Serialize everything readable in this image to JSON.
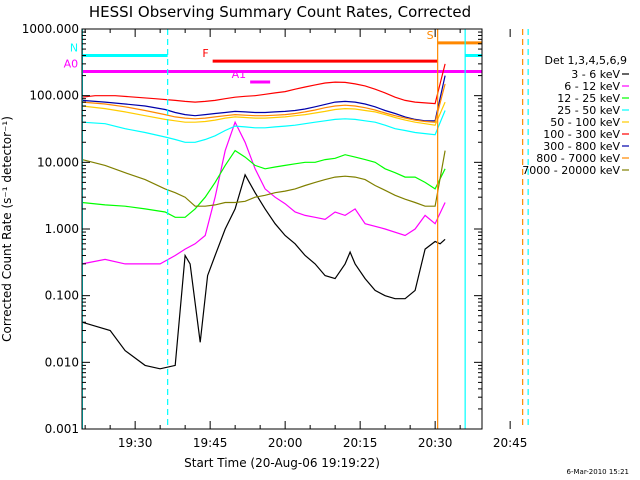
{
  "chart_data": {
    "type": "line",
    "title": "HESSI Observing Summary Count Rates, Corrected",
    "xlabel": "Start Time (20-Aug-06 19:19:22)",
    "ylabel": "Corrected Count Rate (s⁻¹ detector⁻¹)",
    "yscale": "log",
    "ylim": [
      0.001,
      1000
    ],
    "xlim_minutes": [
      19.37,
      99.37
    ],
    "y_tick_labels": [
      "0.001",
      "0.010",
      "0.100",
      "1.000",
      "10.000",
      "100.000",
      "1000.000"
    ],
    "y_tick_values": [
      0.001,
      0.01,
      0.1,
      1,
      10,
      100,
      1000
    ],
    "x_tick_labels": [
      "19:30",
      "19:45",
      "20:00",
      "20:15",
      "20:30",
      "20:45"
    ],
    "x_tick_minutes": [
      30,
      45,
      60,
      75,
      90,
      105
    ],
    "legend_title": "Det 1,3,4,5,6,9",
    "legend_position": "right",
    "series": [
      {
        "name": "3 - 6 keV",
        "color": "#000000",
        "x": [
          19.4,
          22,
          25,
          28,
          32,
          35,
          38,
          40,
          41,
          43,
          44.5,
          46,
          48,
          50,
          52,
          54,
          56,
          58,
          60,
          62,
          64,
          66,
          68,
          70,
          72,
          73,
          74,
          76,
          78,
          80,
          82,
          84,
          86,
          88,
          90,
          91,
          92
        ],
        "y": [
          0.04,
          0.035,
          0.03,
          0.015,
          0.009,
          0.008,
          0.009,
          0.4,
          0.3,
          0.02,
          0.2,
          0.4,
          1.0,
          2.0,
          6.5,
          3.5,
          2.0,
          1.2,
          0.8,
          0.6,
          0.4,
          0.3,
          0.2,
          0.18,
          0.3,
          0.45,
          0.3,
          0.18,
          0.12,
          0.1,
          0.09,
          0.09,
          0.12,
          0.5,
          0.65,
          0.6,
          0.7
        ]
      },
      {
        "name": "6 - 12 keV",
        "color": "#ff00ff",
        "x": [
          19.4,
          24,
          28,
          32,
          35,
          38,
          40,
          42,
          44,
          46,
          48,
          50,
          52,
          54,
          56,
          58,
          60,
          62,
          64,
          66,
          68,
          70,
          72,
          74,
          76,
          80,
          84,
          86,
          88,
          90,
          92
        ],
        "y": [
          0.3,
          0.35,
          0.3,
          0.3,
          0.3,
          0.4,
          0.5,
          0.6,
          0.8,
          3,
          15,
          40,
          20,
          8,
          4,
          3,
          2.4,
          1.8,
          1.6,
          1.5,
          1.4,
          1.8,
          1.6,
          2,
          1.2,
          1,
          0.8,
          1,
          1.6,
          1.2,
          2.5
        ]
      },
      {
        "name": "12 - 25 keV",
        "color": "#00ff00",
        "x": [
          19.4,
          24,
          28,
          32,
          36,
          38,
          40,
          42,
          44,
          46,
          48,
          50,
          52,
          54,
          56,
          58,
          60,
          62,
          64,
          66,
          68,
          70,
          72,
          74,
          76,
          78,
          80,
          82,
          84,
          86,
          88,
          90,
          92
        ],
        "y": [
          2.5,
          2.3,
          2.2,
          2.0,
          1.8,
          1.5,
          1.5,
          2.0,
          3.0,
          5,
          9,
          15,
          12,
          9,
          8,
          8.5,
          9,
          9.5,
          10,
          10,
          11,
          11.5,
          13,
          12,
          11,
          10,
          8,
          7,
          6,
          6,
          5,
          4,
          8
        ]
      },
      {
        "name": "25 - 50 keV",
        "color": "#00ffff",
        "x": [
          19.4,
          24,
          28,
          32,
          36,
          38,
          40,
          42,
          44,
          46,
          48,
          50,
          52,
          54,
          56,
          58,
          60,
          62,
          64,
          66,
          68,
          70,
          72,
          74,
          76,
          78,
          80,
          82,
          84,
          86,
          88,
          90,
          92
        ],
        "y": [
          40,
          38,
          32,
          28,
          24,
          22,
          20,
          20,
          22,
          25,
          30,
          35,
          34,
          33,
          33,
          34,
          35,
          36,
          38,
          40,
          42,
          44,
          45,
          44,
          42,
          40,
          36,
          32,
          30,
          28,
          27,
          26,
          60
        ]
      },
      {
        "name": "50 - 100 keV",
        "color": "#ffcc00",
        "x": [
          19.4,
          24,
          28,
          32,
          36,
          38,
          40,
          42,
          44,
          46,
          48,
          50,
          52,
          54,
          56,
          58,
          60,
          62,
          64,
          66,
          68,
          70,
          72,
          74,
          76,
          78,
          80,
          82,
          84,
          86,
          88,
          90,
          92
        ],
        "y": [
          70,
          64,
          57,
          50,
          44,
          42,
          40,
          40,
          41,
          43,
          46,
          48,
          47,
          46,
          46,
          47,
          48,
          50,
          52,
          55,
          58,
          62,
          64,
          63,
          60,
          57,
          52,
          47,
          43,
          40,
          38,
          36,
          80
        ]
      },
      {
        "name": "100 - 300 keV",
        "color": "#ff0000",
        "x": [
          19.4,
          22,
          26,
          30,
          34,
          38,
          40,
          42,
          44,
          46,
          48,
          50,
          52,
          54,
          56,
          58,
          60,
          62,
          64,
          66,
          68,
          70,
          72,
          74,
          76,
          78,
          80,
          82,
          84,
          86,
          88,
          90,
          92
        ],
        "y": [
          95,
          100,
          100,
          95,
          90,
          85,
          82,
          80,
          82,
          85,
          90,
          95,
          98,
          100,
          105,
          110,
          115,
          125,
          135,
          145,
          155,
          160,
          158,
          150,
          140,
          125,
          110,
          95,
          85,
          80,
          78,
          76,
          300
        ]
      },
      {
        "name": "300 - 800 keV",
        "color": "#0000aa",
        "x": [
          19.4,
          24,
          28,
          32,
          36,
          38,
          40,
          42,
          44,
          46,
          48,
          50,
          52,
          54,
          56,
          58,
          60,
          62,
          64,
          66,
          68,
          70,
          72,
          74,
          76,
          78,
          80,
          82,
          84,
          86,
          88,
          90,
          92
        ],
        "y": [
          85,
          80,
          75,
          70,
          62,
          56,
          52,
          50,
          52,
          54,
          56,
          58,
          57,
          56,
          56,
          57,
          58,
          60,
          63,
          68,
          74,
          80,
          82,
          80,
          75,
          68,
          60,
          54,
          48,
          44,
          42,
          42,
          200
        ]
      },
      {
        "name": "800 - 7000 keV",
        "color": "#ff8800",
        "x": [
          19.4,
          24,
          28,
          32,
          36,
          38,
          40,
          42,
          44,
          46,
          48,
          50,
          52,
          54,
          56,
          58,
          60,
          62,
          64,
          66,
          68,
          70,
          72,
          74,
          76,
          78,
          80,
          82,
          84,
          86,
          88,
          90,
          92
        ],
        "y": [
          80,
          75,
          68,
          60,
          52,
          48,
          46,
          45,
          46,
          48,
          50,
          52,
          51,
          50,
          50,
          51,
          52,
          54,
          57,
          61,
          66,
          70,
          72,
          70,
          66,
          61,
          55,
          50,
          46,
          43,
          41,
          40,
          150
        ]
      },
      {
        "name": "7000 - 20000 keV",
        "color": "#808000",
        "x": [
          19.4,
          24,
          28,
          32,
          36,
          38,
          40,
          42,
          44,
          46,
          48,
          50,
          52,
          54,
          56,
          58,
          60,
          62,
          64,
          66,
          68,
          70,
          72,
          74,
          76,
          78,
          80,
          82,
          84,
          86,
          88,
          90,
          92
        ],
        "y": [
          11,
          9,
          7,
          5.5,
          4,
          3.5,
          3,
          2.2,
          2.2,
          2.3,
          2.5,
          2.5,
          2.6,
          3,
          3.2,
          3.5,
          3.7,
          4,
          4.5,
          5,
          5.5,
          6,
          6.2,
          6,
          5.5,
          4.5,
          3.8,
          3.2,
          2.8,
          2.5,
          2.2,
          2.2,
          15
        ]
      }
    ],
    "flags": [
      {
        "label": "N",
        "color": "#00ffff",
        "y": 400,
        "segments": [
          [
            19.4,
            36.5
          ],
          [
            96,
            99.4
          ]
        ]
      },
      {
        "label": "F",
        "color": "#ff0000",
        "y": 330,
        "segments": [
          [
            45.5,
            90.5
          ]
        ]
      },
      {
        "label": "S",
        "color": "#ff8800",
        "y": 620,
        "segments": [
          [
            90.5,
            108
          ]
        ]
      },
      {
        "label": "A0",
        "color": "#ff00ff",
        "y": 230,
        "segments": [
          [
            19.4,
            99.4
          ]
        ]
      },
      {
        "label": "A1",
        "color": "#ff00ff",
        "y": 160,
        "segments": [
          [
            53,
            57
          ]
        ]
      }
    ],
    "vertical_lines": [
      {
        "x": 19.45,
        "color": "#00ffff",
        "style": "solid"
      },
      {
        "x": 36.5,
        "color": "#00ffff",
        "style": "dashed"
      },
      {
        "x": 90.5,
        "color": "#ff8800",
        "style": "solid"
      },
      {
        "x": 96.0,
        "color": "#00ffff",
        "style": "solid"
      },
      {
        "x": 107.5,
        "color": "#ff8800",
        "style": "dashed"
      },
      {
        "x": 108.6,
        "color": "#00ffff",
        "style": "dashed"
      }
    ]
  },
  "footer": {
    "timestamp": "6-Mar-2010 15:21"
  }
}
